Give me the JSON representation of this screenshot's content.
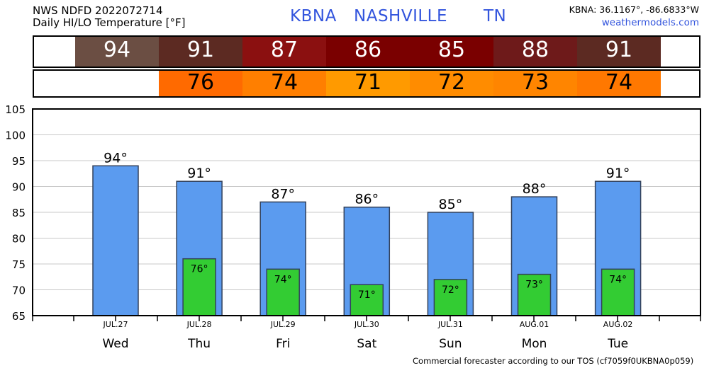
{
  "header": {
    "product": "NWS NDFD 2022072714",
    "subtitle": "Daily HI/LO Temperature [°F]",
    "station_id": "KBNA",
    "station_name": "NASHVILLE",
    "state": "TN",
    "coords": "KBNA: 36.1167°, -86.6833°W",
    "site": "weathermodels.com"
  },
  "hi_strip": {
    "values": [
      "94",
      "91",
      "87",
      "86",
      "85",
      "88",
      "91"
    ],
    "colors": [
      "#6b4e43",
      "#5c2a22",
      "#8b1010",
      "#7a0000",
      "#7a0000",
      "#6e1a1a",
      "#5c2a22"
    ]
  },
  "lo_strip": {
    "values": [
      "76",
      "74",
      "71",
      "72",
      "73",
      "74"
    ],
    "colors": [
      "#ff6a00",
      "#ff7f00",
      "#ff9a00",
      "#ff8c00",
      "#ff8500",
      "#ff7800"
    ]
  },
  "chart_data": {
    "type": "bar",
    "categories": [
      "Wed",
      "Thu",
      "Fri",
      "Sat",
      "Sun",
      "Mon",
      "Tue"
    ],
    "dates": [
      "JUL.27",
      "JUL.28",
      "JUL.29",
      "JUL.30",
      "JUL.31",
      "AUG.01",
      "AUG.02"
    ],
    "series": [
      {
        "name": "HI",
        "values": [
          94,
          91,
          87,
          86,
          85,
          88,
          91
        ],
        "labels": [
          "94°",
          "91°",
          "87°",
          "86°",
          "85°",
          "88°",
          "91°"
        ],
        "color": "#5b9bef"
      },
      {
        "name": "LO",
        "values": [
          null,
          76,
          74,
          71,
          72,
          73,
          74
        ],
        "labels": [
          "",
          "76°",
          "74°",
          "71°",
          "72°",
          "73°",
          "74°"
        ],
        "color": "#33cc33"
      }
    ],
    "ylim": [
      65,
      105
    ],
    "yticks": [
      65,
      70,
      75,
      80,
      85,
      90,
      95,
      100,
      105
    ],
    "grid": true
  },
  "footer": "Commercial forecaster according to our TOS (cf7059f0UKBNA0p059)"
}
